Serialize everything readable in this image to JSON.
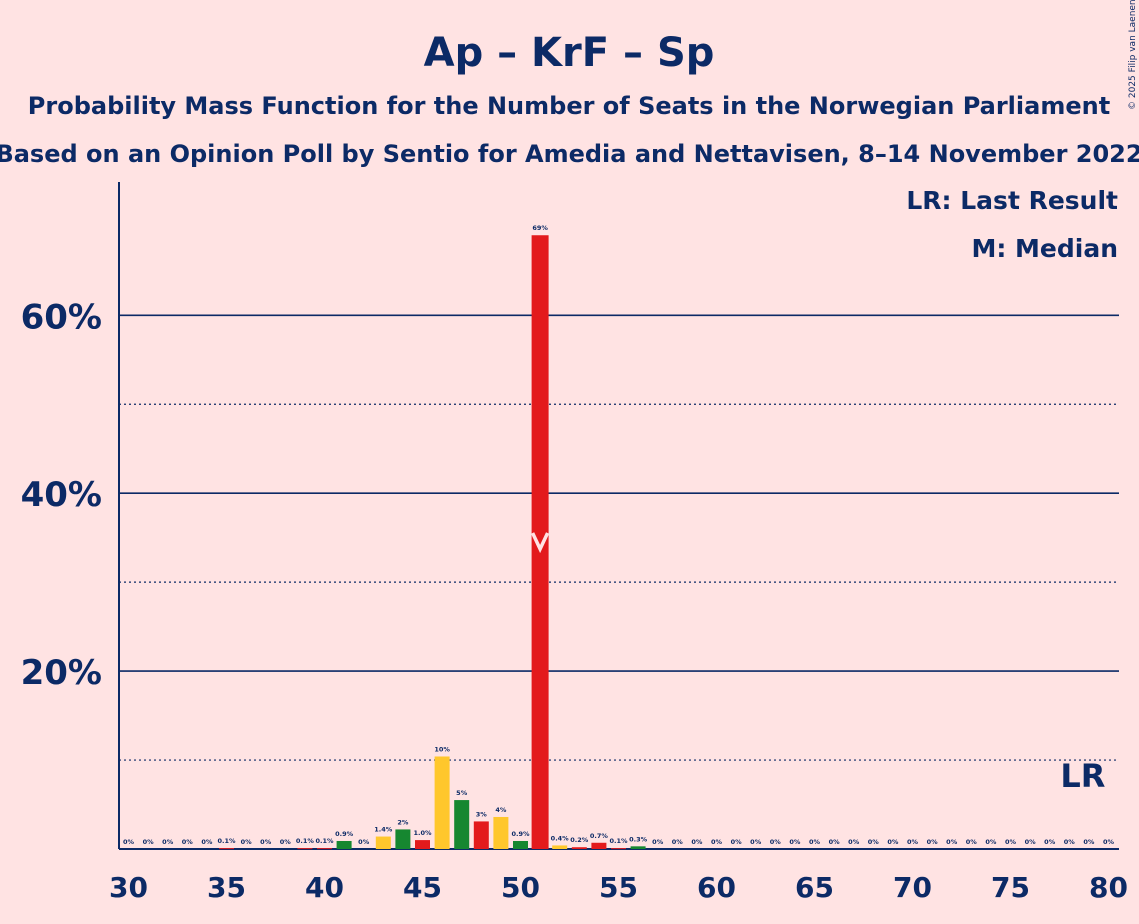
{
  "title": "Ap – KrF – Sp",
  "subtitle1": "Probability Mass Function for the Number of Seats in the Norwegian Parliament",
  "subtitle2": "Based on an Opinion Poll by Sentio for Amedia and Nettavisen, 8–14 November 2022",
  "legend": {
    "lr": "LR: Last Result",
    "m": "M: Median"
  },
  "lr_marker_label": "LR",
  "copyright": "© 2025 Filip van Laenen",
  "colors": {
    "background": "#FFE3E3",
    "text": "#0C2A66",
    "red": "#E31A1C",
    "yellow": "#FFC72C",
    "green": "#168730"
  },
  "chart_data": {
    "type": "bar",
    "x": [
      30,
      31,
      32,
      33,
      34,
      35,
      36,
      37,
      38,
      39,
      40,
      41,
      42,
      43,
      44,
      45,
      46,
      47,
      48,
      49,
      50,
      51,
      52,
      53,
      54,
      55,
      56,
      57,
      58,
      59,
      60,
      61,
      62,
      63,
      64,
      65,
      66,
      67,
      68,
      69,
      70,
      71,
      72,
      73,
      74,
      75,
      76,
      77,
      78,
      79,
      80
    ],
    "values": [
      0,
      0,
      0,
      0,
      0,
      0.1,
      0,
      0,
      0,
      0.1,
      0.1,
      0.9,
      0,
      1.4,
      2.2,
      1.0,
      10.4,
      5.5,
      3.1,
      3.6,
      0.9,
      69,
      0.4,
      0.2,
      0.7,
      0.1,
      0.3,
      0,
      0,
      0,
      0,
      0,
      0,
      0,
      0,
      0,
      0,
      0,
      0,
      0,
      0,
      0,
      0,
      0,
      0,
      0,
      0,
      0,
      0,
      0,
      0
    ],
    "labels": [
      "0%",
      "0%",
      "0%",
      "0%",
      "0%",
      "0.1%",
      "0%",
      "0%",
      "0%",
      "0.1%",
      "0.1%",
      "0.9%",
      "0%",
      "1.4%",
      "2%",
      "1.0%",
      "10%",
      "5%",
      "3%",
      "4%",
      "0.9%",
      "69%",
      "0.4%",
      "0.2%",
      "0.7%",
      "0.1%",
      "0.3%",
      "0%",
      "0%",
      "0%",
      "0%",
      "0%",
      "0%",
      "0%",
      "0%",
      "0%",
      "0%",
      "0%",
      "0%",
      "0%",
      "0%",
      "0%",
      "0%",
      "0%",
      "0%",
      "0%",
      "0%",
      "0%",
      "0%",
      "0%",
      "0%"
    ],
    "bar_colors": [
      "red",
      "red",
      "red",
      "red",
      "red",
      "red",
      "red",
      "red",
      "red",
      "red",
      "red",
      "green",
      "red",
      "yellow",
      "green",
      "red",
      "yellow",
      "green",
      "red",
      "yellow",
      "green",
      "red",
      "yellow",
      "red",
      "red",
      "red",
      "green",
      "red",
      "red",
      "red",
      "red",
      "red",
      "red",
      "red",
      "red",
      "red",
      "red",
      "red",
      "red",
      "red",
      "red",
      "red",
      "red",
      "red",
      "red",
      "red",
      "red",
      "red",
      "red",
      "red",
      "red"
    ],
    "xticks": [
      30,
      35,
      40,
      45,
      50,
      55,
      60,
      65,
      70,
      75,
      80
    ],
    "yticks": [
      20,
      40,
      60
    ],
    "ytick_labels": [
      "20%",
      "40%",
      "60%"
    ],
    "ylim": [
      0,
      75
    ],
    "xlim": [
      30,
      80
    ],
    "median": 51,
    "last_result": 79
  }
}
